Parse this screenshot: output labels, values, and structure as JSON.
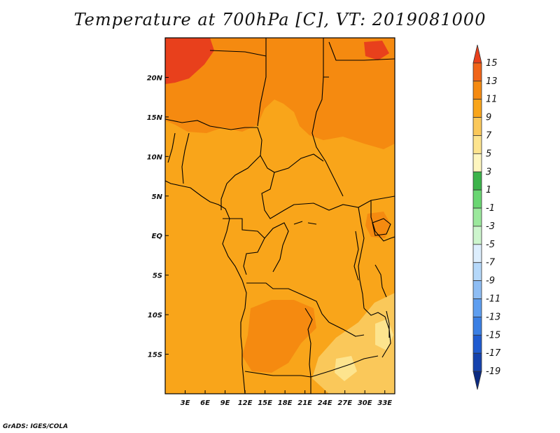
{
  "title": "Temperature at 700hPa [C], VT: 2019081000",
  "credit": "GrADS: IGES/COLA",
  "map": {
    "lon_range": [
      0,
      34.5
    ],
    "lat_range": [
      -20,
      25
    ],
    "lat_ticks": [
      {
        "value": 20,
        "label": "20N"
      },
      {
        "value": 15,
        "label": "15N"
      },
      {
        "value": 10,
        "label": "10N"
      },
      {
        "value": 5,
        "label": "5N"
      },
      {
        "value": 0,
        "label": "EQ"
      },
      {
        "value": -5,
        "label": "5S"
      },
      {
        "value": -10,
        "label": "10S"
      },
      {
        "value": -15,
        "label": "15S"
      }
    ],
    "lon_ticks": [
      {
        "value": 3,
        "label": "3E"
      },
      {
        "value": 6,
        "label": "6E"
      },
      {
        "value": 9,
        "label": "9E"
      },
      {
        "value": 12,
        "label": "12E"
      },
      {
        "value": 15,
        "label": "15E"
      },
      {
        "value": 18,
        "label": "18E"
      },
      {
        "value": 21,
        "label": "21E"
      },
      {
        "value": 24,
        "label": "24E"
      },
      {
        "value": 27,
        "label": "27E"
      },
      {
        "value": 30,
        "label": "30E"
      },
      {
        "value": 33,
        "label": "33E"
      }
    ]
  },
  "colorbar": {
    "labels": [
      "15",
      "13",
      "11",
      "9",
      "7",
      "5",
      "3",
      "1",
      "-1",
      "-3",
      "-5",
      "-7",
      "-9",
      "-11",
      "-13",
      "-15",
      "-17",
      "-19"
    ],
    "colors": [
      "#e8401c",
      "#f06418",
      "#f58a10",
      "#f9a51a",
      "#fac85a",
      "#fde48e",
      "#fef6bf",
      "#3cb34a",
      "#6ad672",
      "#9be89c",
      "#cdf5cd",
      "#ddeefd",
      "#b5d8fa",
      "#8ebdf4",
      "#5e9ef0",
      "#3a7fe4",
      "#1f5bd0",
      "#1542ad",
      "#0b2a82"
    ]
  }
}
